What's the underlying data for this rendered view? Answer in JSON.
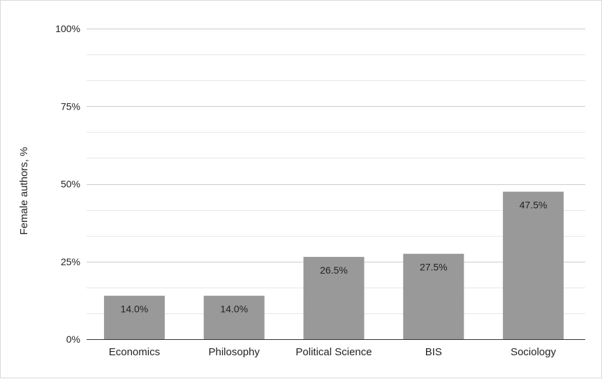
{
  "chart_data": {
    "type": "bar",
    "categories": [
      "Economics",
      "Philosophy",
      "Political Science",
      "BIS",
      "Sociology"
    ],
    "values": [
      14.0,
      14.0,
      26.5,
      27.5,
      47.5
    ],
    "value_labels": [
      "14.0%",
      "14.0%",
      "26.5%",
      "27.5%",
      "47.5%"
    ],
    "ylabel": "Female authors, %",
    "xlabel": "",
    "ylim": [
      0,
      100
    ],
    "yticks": [
      0,
      25,
      50,
      75,
      100
    ],
    "ytick_labels": [
      "0%",
      "25%",
      "50%",
      "75%",
      "100%"
    ],
    "minor_gridlines_per_interval": 2,
    "grid": true,
    "legend": "none",
    "bar_color": "#999999",
    "gridline_color": "#cccccc",
    "minor_gridline_color": "#e6e6e6",
    "axis_color": "#333333"
  }
}
